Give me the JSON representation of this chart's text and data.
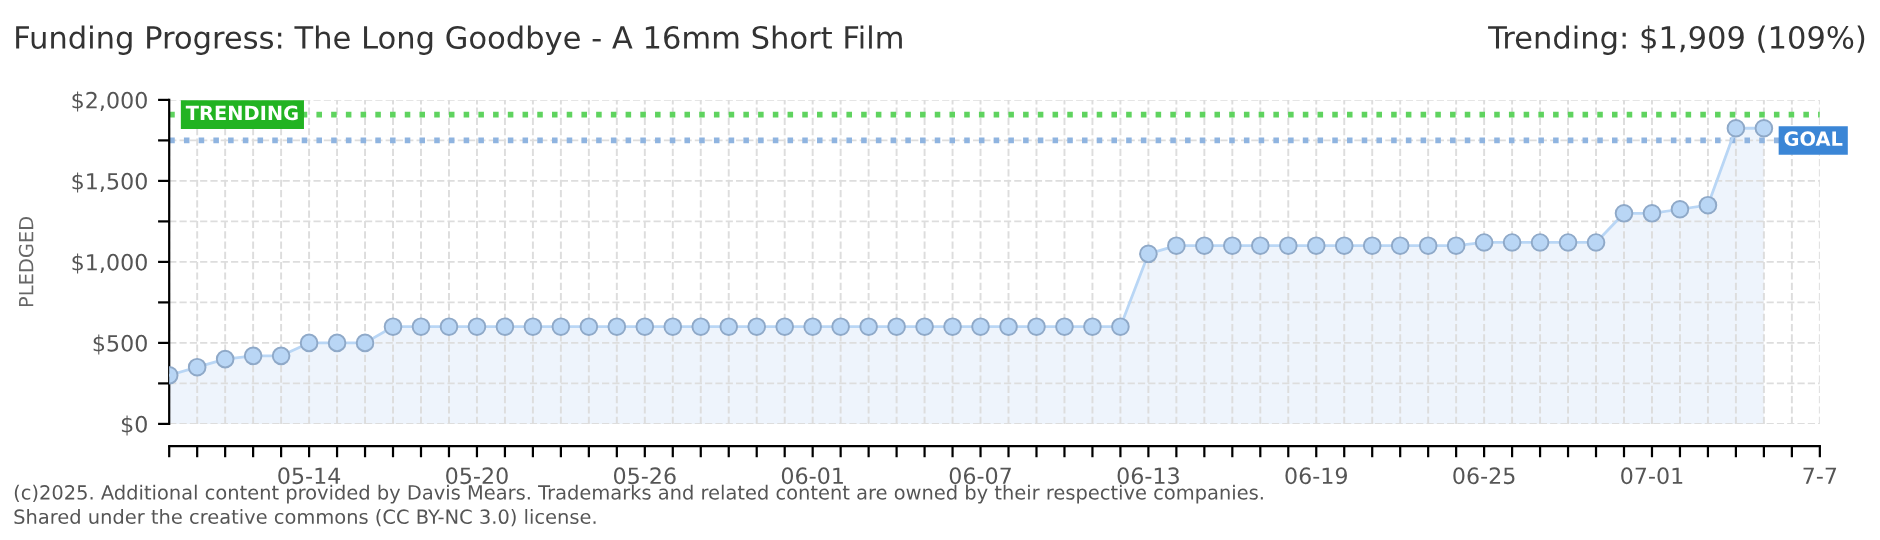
{
  "chart_data": {
    "type": "area",
    "title": "Funding Progress: The Long Goodbye - A 16mm Short Film",
    "subtitle": "Trending: $1,909 (109%)",
    "ylabel": "PLEDGED",
    "x": [
      "2025-05-09",
      "2025-05-10",
      "2025-05-11",
      "2025-05-12",
      "2025-05-13",
      "2025-05-14",
      "2025-05-15",
      "2025-05-16",
      "2025-05-17",
      "2025-05-18",
      "2025-05-19",
      "2025-05-20",
      "2025-05-21",
      "2025-05-22",
      "2025-05-23",
      "2025-05-24",
      "2025-05-25",
      "2025-05-26",
      "2025-05-27",
      "2025-05-28",
      "2025-05-29",
      "2025-05-30",
      "2025-05-31",
      "2025-06-01",
      "2025-06-02",
      "2025-06-03",
      "2025-06-04",
      "2025-06-05",
      "2025-06-06",
      "2025-06-07",
      "2025-06-08",
      "2025-06-09",
      "2025-06-10",
      "2025-06-11",
      "2025-06-12",
      "2025-06-13",
      "2025-06-14",
      "2025-06-15",
      "2025-06-16",
      "2025-06-17",
      "2025-06-18",
      "2025-06-19",
      "2025-06-20",
      "2025-06-21",
      "2025-06-22",
      "2025-06-23",
      "2025-06-24",
      "2025-06-25",
      "2025-06-26",
      "2025-06-27",
      "2025-06-28",
      "2025-06-29",
      "2025-06-30",
      "2025-07-01",
      "2025-07-02",
      "2025-07-03",
      "2025-07-04",
      "2025-07-05"
    ],
    "series": [
      {
        "color": "#b9d6f5",
        "values": [
          300,
          350,
          400,
          420,
          420,
          500,
          500,
          500,
          600,
          600,
          600,
          600,
          600,
          600,
          600,
          600,
          600,
          600,
          600,
          600,
          600,
          600,
          600,
          600,
          600,
          600,
          600,
          600,
          600,
          600,
          600,
          600,
          600,
          600,
          600,
          1050,
          1100,
          1100,
          1100,
          1100,
          1100,
          1100,
          1100,
          1100,
          1100,
          1100,
          1100,
          1120,
          1120,
          1120,
          1120,
          1120,
          1300,
          1300,
          1325,
          1350,
          1825,
          1825
        ]
      }
    ],
    "marker": "circle",
    "xlim": [
      "2025-05-09",
      "2025-07-07"
    ],
    "xticks": [
      {
        "value": "2025-05-09",
        "label": null
      },
      {
        "value": "2025-05-10",
        "label": null
      },
      {
        "value": "2025-05-11",
        "label": null
      },
      {
        "value": "2025-05-12",
        "label": null
      },
      {
        "value": "2025-05-13",
        "label": null
      },
      {
        "value": "2025-05-14",
        "label": "05-14"
      },
      {
        "value": "2025-05-15",
        "label": null
      },
      {
        "value": "2025-05-16",
        "label": null
      },
      {
        "value": "2025-05-17",
        "label": null
      },
      {
        "value": "2025-05-18",
        "label": null
      },
      {
        "value": "2025-05-19",
        "label": null
      },
      {
        "value": "2025-05-20",
        "label": "05-20"
      },
      {
        "value": "2025-05-21",
        "label": null
      },
      {
        "value": "2025-05-22",
        "label": null
      },
      {
        "value": "2025-05-23",
        "label": null
      },
      {
        "value": "2025-05-24",
        "label": null
      },
      {
        "value": "2025-05-25",
        "label": null
      },
      {
        "value": "2025-05-26",
        "label": "05-26"
      },
      {
        "value": "2025-05-27",
        "label": null
      },
      {
        "value": "2025-05-28",
        "label": null
      },
      {
        "value": "2025-05-29",
        "label": null
      },
      {
        "value": "2025-05-30",
        "label": null
      },
      {
        "value": "2025-05-31",
        "label": null
      },
      {
        "value": "2025-06-01",
        "label": "06-01"
      },
      {
        "value": "2025-06-02",
        "label": null
      },
      {
        "value": "2025-06-03",
        "label": null
      },
      {
        "value": "2025-06-04",
        "label": null
      },
      {
        "value": "2025-06-05",
        "label": null
      },
      {
        "value": "2025-06-06",
        "label": null
      },
      {
        "value": "2025-06-07",
        "label": "06-07"
      },
      {
        "value": "2025-06-08",
        "label": null
      },
      {
        "value": "2025-06-09",
        "label": null
      },
      {
        "value": "2025-06-10",
        "label": null
      },
      {
        "value": "2025-06-11",
        "label": null
      },
      {
        "value": "2025-06-12",
        "label": null
      },
      {
        "value": "2025-06-13",
        "label": "06-13"
      },
      {
        "value": "2025-06-14",
        "label": null
      },
      {
        "value": "2025-06-15",
        "label": null
      },
      {
        "value": "2025-06-16",
        "label": null
      },
      {
        "value": "2025-06-17",
        "label": null
      },
      {
        "value": "2025-06-18",
        "label": null
      },
      {
        "value": "2025-06-19",
        "label": "06-19"
      },
      {
        "value": "2025-06-20",
        "label": null
      },
      {
        "value": "2025-06-21",
        "label": null
      },
      {
        "value": "2025-06-22",
        "label": null
      },
      {
        "value": "2025-06-23",
        "label": null
      },
      {
        "value": "2025-06-24",
        "label": null
      },
      {
        "value": "2025-06-25",
        "label": "06-25"
      },
      {
        "value": "2025-06-26",
        "label": null
      },
      {
        "value": "2025-06-27",
        "label": null
      },
      {
        "value": "2025-06-28",
        "label": null
      },
      {
        "value": "2025-06-29",
        "label": null
      },
      {
        "value": "2025-06-30",
        "label": null
      },
      {
        "value": "2025-07-01",
        "label": "07-01"
      },
      {
        "value": "2025-07-02",
        "label": null
      },
      {
        "value": "2025-07-03",
        "label": null
      },
      {
        "value": "2025-07-04",
        "label": null
      },
      {
        "value": "2025-07-05",
        "label": null
      },
      {
        "value": "2025-07-06",
        "label": null
      },
      {
        "value": "2025-07-07",
        "label": "7-7"
      }
    ],
    "ylim": [
      0,
      2000
    ],
    "yticks": [
      {
        "value": 0,
        "label": "$0"
      },
      {
        "value": 250,
        "label": null
      },
      {
        "value": 500,
        "label": "$500"
      },
      {
        "value": 750,
        "label": null
      },
      {
        "value": 1000,
        "label": "$1,000"
      },
      {
        "value": 1250,
        "label": null
      },
      {
        "value": 1500,
        "label": "$1,500"
      },
      {
        "value": 1750,
        "label": null
      },
      {
        "value": 2000,
        "label": "$2,000"
      }
    ],
    "grid": true,
    "ref_lines": [
      {
        "axis": "y",
        "value": 1909,
        "label": "TRENDING",
        "color": "#5fd35f",
        "line_style": "dotted"
      },
      {
        "axis": "y",
        "value": 1750,
        "label": "GOAL",
        "color": "#8fb4e0",
        "line_style": "dotted"
      }
    ],
    "annotations": [
      "(c)2025. Additional content provided by Davis Mears. Trademarks and related content are owned by their respective companies.",
      "Shared under the creative commons (CC BY-NC 3.0) license."
    ]
  }
}
